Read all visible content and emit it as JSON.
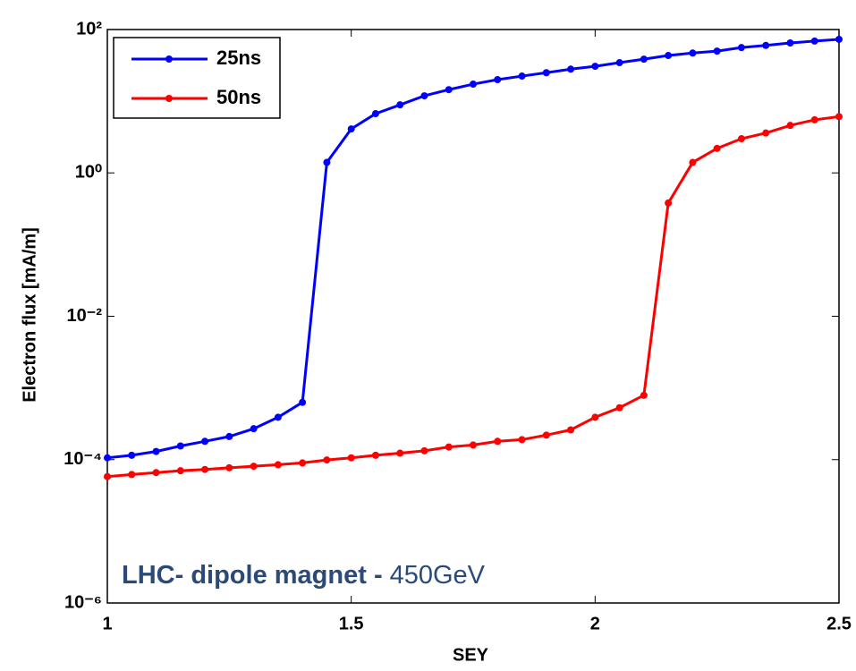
{
  "chart_data": {
    "type": "line",
    "xlabel": "SEY",
    "ylabel": "Electron flux [mA/m]",
    "annotation": [
      "LHC- dipole magnet -",
      "450GeV"
    ],
    "yscale": "log",
    "grid": false,
    "legend": "upper left",
    "x": [
      1,
      1.05,
      1.1,
      1.15,
      1.2,
      1.25,
      1.3,
      1.35,
      1.4,
      1.45,
      1.5,
      1.55,
      1.6,
      1.65,
      1.7,
      1.75,
      1.8,
      1.85,
      1.9,
      1.95,
      2,
      2.05,
      2.1,
      2.15,
      2.2,
      2.25,
      2.3,
      2.35,
      2.4,
      2.45,
      2.5
    ],
    "series": [
      {
        "name": "25ns",
        "color": "#0000ff",
        "values": [
          0.000106,
          0.000115,
          0.00013,
          0.000155,
          0.00018,
          0.00021,
          0.00027,
          0.00039,
          0.00063,
          1.4,
          4.1,
          6.7,
          8.9,
          11.9,
          14.5,
          17.3,
          20,
          22.4,
          25,
          28,
          30.7,
          34.5,
          38.6,
          43.4,
          47,
          50,
          56,
          60,
          65,
          69,
          73
        ]
      },
      {
        "name": "50ns",
        "color": "#ff0000",
        "values": [
          5.8e-05,
          6.2e-05,
          6.6e-05,
          7e-05,
          7.3e-05,
          7.7e-05,
          8.1e-05,
          8.5e-05,
          9e-05,
          9.9e-05,
          0.000106,
          0.000115,
          0.000123,
          0.000133,
          0.00015,
          0.00016,
          0.00018,
          0.00019,
          0.00022,
          0.00026,
          0.00039,
          0.00053,
          0.00079,
          0.38,
          1.4,
          2.2,
          3.0,
          3.6,
          4.6,
          5.5,
          6.1
        ]
      }
    ],
    "xlim": [
      1,
      2.5
    ],
    "xticks": [
      1,
      1.5,
      2,
      2.5
    ],
    "ylim": [
      1e-06,
      100
    ],
    "yticks": [
      {
        "value": 1e-06,
        "label": "10⁻⁶"
      },
      {
        "value": 0.0001,
        "label": "10⁻⁴"
      },
      {
        "value": 0.01,
        "label": "10⁻²"
      },
      {
        "value": 1,
        "label": "10⁰"
      },
      {
        "value": 100,
        "label": "10²"
      }
    ]
  }
}
